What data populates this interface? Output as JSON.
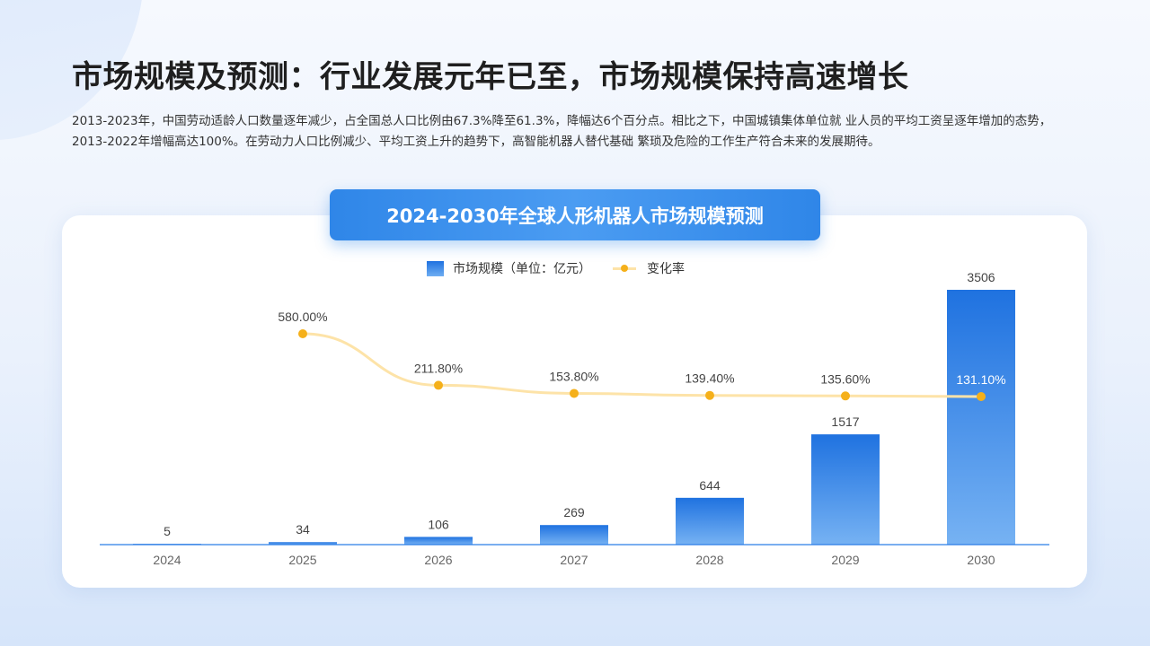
{
  "header": {
    "title": "市场规模及预测：行业发展元年已至，市场规模保持高速增长",
    "intro": "2013-2023年，中国劳动适龄人口数量逐年减少，占全国总人口比例由67.3%降至61.3%，降幅达6个百分点。相比之下，中国城镇集体单位就 业人员的平均工资呈逐年增加的态势，2013-2022年增幅高达100%。在劳动力人口比例减少、平均工资上升的趋势下，高智能机器人替代基础 繁琐及危险的工作生产符合未来的发展期待。"
  },
  "chart_data": {
    "type": "bar",
    "title": "2024-2030年全球人形机器人市场规模预测",
    "categories": [
      "2024",
      "2025",
      "2026",
      "2027",
      "2028",
      "2029",
      "2030"
    ],
    "series": [
      {
        "name": "市场规模（单位：亿元）",
        "type": "bar",
        "values": [
          5,
          34,
          106,
          269,
          644,
          1517,
          3506
        ],
        "labels": [
          "5",
          "34",
          "106",
          "269",
          "644",
          "1517",
          "3506"
        ],
        "color": "#2a7de6"
      },
      {
        "name": "变化率",
        "type": "line",
        "values": [
          null,
          580.0,
          211.8,
          153.8,
          139.4,
          135.6,
          131.1
        ],
        "labels": [
          "",
          "580.00%",
          "211.80%",
          "153.80%",
          "139.40%",
          "135.60%",
          "131.10%"
        ],
        "color": "#f5b01a",
        "line_color": "#fde3a8"
      }
    ],
    "legend_position": "top-center",
    "grid": false,
    "ylim": [
      0,
      3506
    ]
  },
  "colors": {
    "axis": "#2a7de6",
    "tick_label": "#666666",
    "value_label": "#444444"
  }
}
